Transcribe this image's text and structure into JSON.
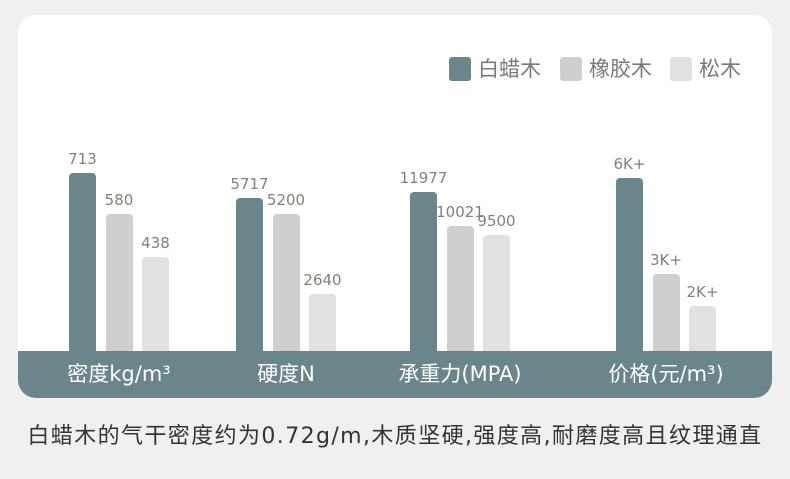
{
  "chart_data": {
    "type": "bar",
    "categories": [
      "密度kg/m³",
      "硬度N",
      "承重力(MPA)",
      "价格(元/m³)"
    ],
    "series": [
      {
        "name": "白蜡木",
        "values": [
          713,
          5717,
          11977,
          6000
        ],
        "labels": [
          "713",
          "5717",
          "11977",
          "6K+"
        ],
        "color": "#6a868a"
      },
      {
        "name": "橡胶木",
        "values": [
          580,
          5200,
          10021,
          3000
        ],
        "labels": [
          "580",
          "5200",
          "10021",
          "3K+"
        ],
        "color": "#cfcfcf"
      },
      {
        "name": "松木",
        "values": [
          438,
          2640,
          9500,
          2000
        ],
        "labels": [
          "438",
          "2640",
          "9500",
          "2K+"
        ],
        "color": "#e1e1e1"
      }
    ],
    "legend": "top-right",
    "grid": false
  },
  "theme": {
    "band_color": "#6a868a"
  },
  "caption": "白蜡木的气干密度约为0.72g/m,木质坚硬,强度高,耐磨度高且纹理通直"
}
